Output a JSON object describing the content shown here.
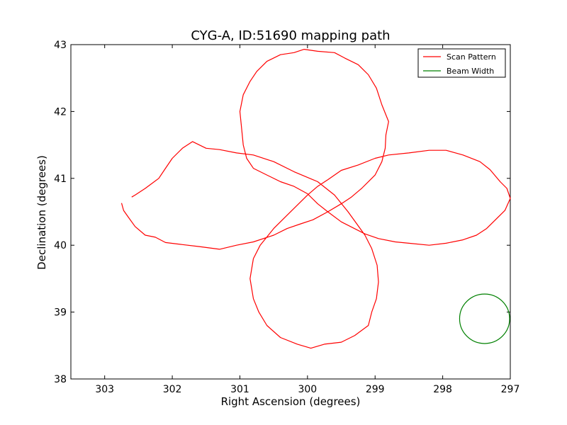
{
  "chart_data": {
    "type": "line",
    "title": "CYG-A, ID:51690 mapping path",
    "xlabel": "Right Ascension (degrees)",
    "ylabel": "Declination (degrees)",
    "xlim": [
      303.5,
      297.0
    ],
    "ylim": [
      38.0,
      43.0
    ],
    "x_inverted": true,
    "x_ticks": [
      303,
      302,
      301,
      300,
      299,
      298,
      297
    ],
    "y_ticks": [
      38,
      39,
      40,
      41,
      42,
      43
    ],
    "grid": false,
    "legend": {
      "position": "top-right"
    },
    "series": [
      {
        "name": "Scan Pattern",
        "color": "#ff0000",
        "points": [
          [
            302.75,
            40.63
          ],
          [
            302.72,
            40.52
          ],
          [
            302.65,
            40.42
          ],
          [
            302.55,
            40.28
          ],
          [
            302.4,
            40.15
          ],
          [
            302.25,
            40.12
          ],
          [
            302.1,
            40.04
          ],
          [
            301.85,
            40.01
          ],
          [
            301.6,
            39.98
          ],
          [
            301.3,
            39.94
          ],
          [
            301.05,
            40.0
          ],
          [
            300.8,
            40.05
          ],
          [
            300.5,
            40.15
          ],
          [
            300.3,
            40.25
          ],
          [
            300.1,
            40.32
          ],
          [
            299.92,
            40.38
          ],
          [
            299.7,
            40.5
          ],
          [
            299.5,
            40.62
          ],
          [
            299.35,
            40.72
          ],
          [
            299.2,
            40.85
          ],
          [
            299.0,
            41.05
          ],
          [
            298.9,
            41.25
          ],
          [
            298.85,
            41.45
          ],
          [
            298.84,
            41.65
          ],
          [
            298.8,
            41.85
          ],
          [
            298.9,
            42.1
          ],
          [
            298.98,
            42.35
          ],
          [
            299.1,
            42.55
          ],
          [
            299.25,
            42.7
          ],
          [
            299.45,
            42.8
          ],
          [
            299.6,
            42.88
          ],
          [
            299.85,
            42.9
          ],
          [
            300.05,
            42.93
          ],
          [
            300.2,
            42.88
          ],
          [
            300.4,
            42.85
          ],
          [
            300.6,
            42.75
          ],
          [
            300.75,
            42.6
          ],
          [
            300.85,
            42.45
          ],
          [
            300.95,
            42.25
          ],
          [
            301.0,
            42.0
          ],
          [
            300.98,
            41.8
          ],
          [
            300.95,
            41.5
          ],
          [
            300.9,
            41.3
          ],
          [
            300.8,
            41.15
          ],
          [
            300.6,
            41.05
          ],
          [
            300.4,
            40.95
          ],
          [
            300.2,
            40.88
          ],
          [
            300.0,
            40.77
          ],
          [
            299.85,
            40.62
          ],
          [
            299.7,
            40.5
          ],
          [
            299.5,
            40.35
          ],
          [
            299.15,
            40.17
          ],
          [
            298.95,
            40.1
          ],
          [
            298.7,
            40.05
          ],
          [
            298.5,
            40.03
          ],
          [
            298.2,
            40.0
          ],
          [
            297.95,
            40.03
          ],
          [
            297.7,
            40.08
          ],
          [
            297.5,
            40.15
          ],
          [
            297.35,
            40.25
          ],
          [
            297.2,
            40.4
          ],
          [
            297.08,
            40.52
          ],
          [
            297.0,
            40.7
          ],
          [
            297.05,
            40.85
          ],
          [
            297.15,
            40.95
          ],
          [
            297.3,
            41.13
          ],
          [
            297.45,
            41.25
          ],
          [
            297.7,
            41.35
          ],
          [
            297.95,
            41.42
          ],
          [
            298.2,
            41.42
          ],
          [
            298.5,
            41.38
          ],
          [
            298.8,
            41.35
          ],
          [
            299.0,
            41.3
          ],
          [
            299.25,
            41.2
          ],
          [
            299.5,
            41.12
          ],
          [
            299.7,
            40.98
          ],
          [
            299.85,
            40.88
          ],
          [
            300.0,
            40.75
          ],
          [
            300.15,
            40.6
          ],
          [
            300.3,
            40.45
          ],
          [
            300.5,
            40.25
          ],
          [
            300.7,
            40.0
          ],
          [
            300.8,
            39.8
          ],
          [
            300.85,
            39.5
          ],
          [
            300.8,
            39.2
          ],
          [
            300.72,
            39.0
          ],
          [
            300.6,
            38.8
          ],
          [
            300.4,
            38.62
          ],
          [
            300.15,
            38.52
          ],
          [
            299.95,
            38.46
          ],
          [
            299.75,
            38.52
          ],
          [
            299.5,
            38.55
          ],
          [
            299.3,
            38.65
          ],
          [
            299.1,
            38.8
          ],
          [
            299.05,
            39.0
          ],
          [
            298.98,
            39.2
          ],
          [
            298.95,
            39.45
          ],
          [
            298.97,
            39.7
          ],
          [
            299.05,
            39.95
          ],
          [
            299.15,
            40.15
          ],
          [
            299.4,
            40.5
          ],
          [
            299.6,
            40.75
          ],
          [
            299.85,
            40.95
          ],
          [
            300.2,
            41.1
          ],
          [
            300.5,
            41.25
          ],
          [
            300.8,
            41.35
          ],
          [
            301.05,
            41.38
          ],
          [
            301.3,
            41.43
          ],
          [
            301.5,
            41.45
          ],
          [
            301.7,
            41.55
          ],
          [
            301.85,
            41.45
          ],
          [
            302.0,
            41.3
          ],
          [
            302.1,
            41.15
          ],
          [
            302.2,
            41.0
          ],
          [
            302.4,
            40.85
          ],
          [
            302.55,
            40.75
          ],
          [
            302.6,
            40.72
          ]
        ]
      },
      {
        "name": "Beam Width",
        "color": "#008000",
        "shape": "circle",
        "center": [
          297.38,
          38.9
        ],
        "radius_deg": 0.37
      }
    ]
  }
}
